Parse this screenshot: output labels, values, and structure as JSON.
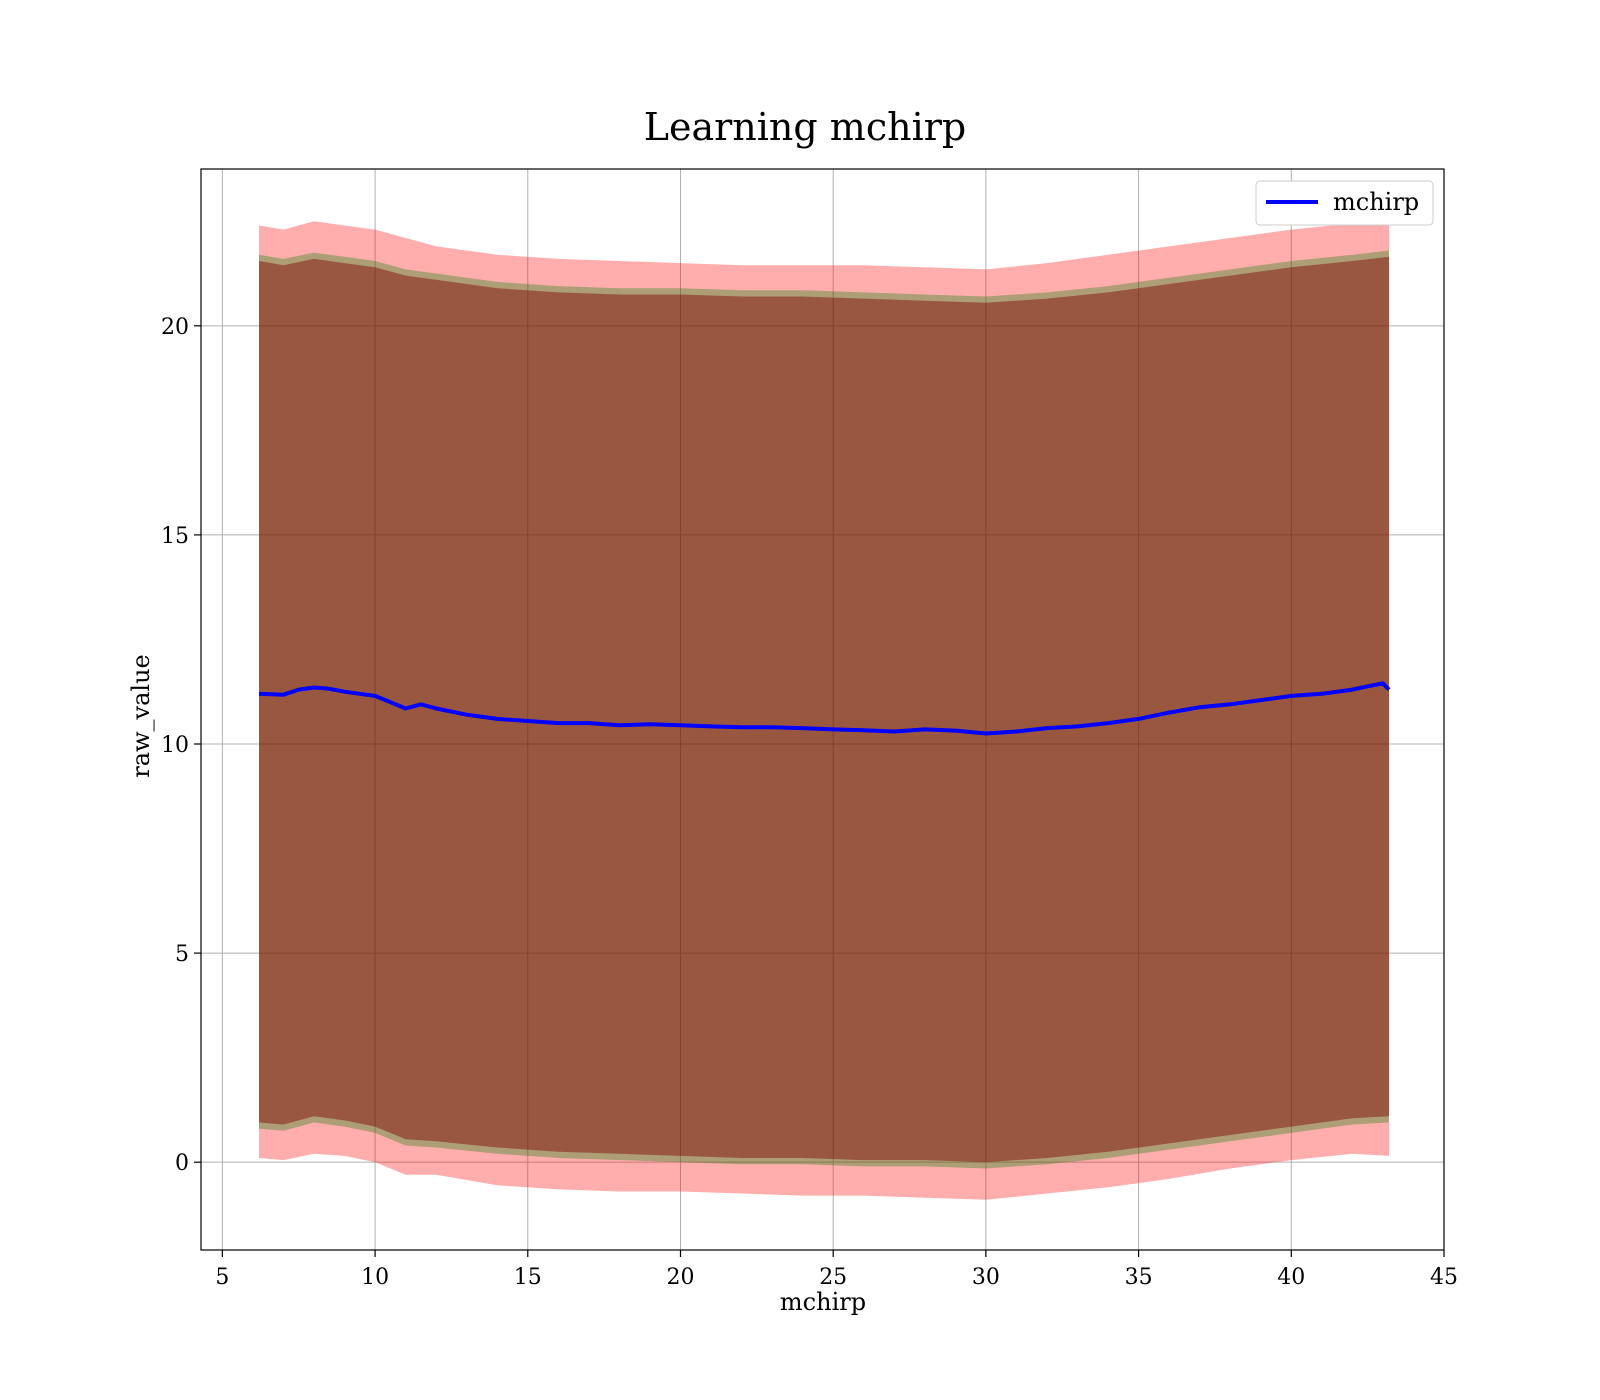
{
  "chart_data": {
    "type": "line",
    "title": "Learning mchirp",
    "xlabel": "mchirp",
    "ylabel": "raw_value",
    "xlim": [
      4.3,
      45
    ],
    "ylim": [
      -2.1,
      23.75
    ],
    "xticks": [
      5,
      10,
      15,
      20,
      25,
      30,
      35,
      40,
      45
    ],
    "yticks": [
      0,
      5,
      10,
      15,
      20
    ],
    "grid": true,
    "legend_position": "top-right",
    "colors": {
      "line": "#0000ff",
      "outer_band": "#ff0000",
      "middle_band": "#008000",
      "inner_band": "#800000",
      "grid": "#b0b0b0"
    },
    "series": [
      {
        "name": "mchirp",
        "x": [
          6.2,
          7.0,
          7.5,
          8.0,
          8.5,
          9.0,
          9.5,
          10.0,
          10.5,
          11.0,
          11.5,
          12.0,
          13.0,
          14.0,
          15.0,
          16.0,
          17.0,
          18.0,
          19.0,
          20.0,
          21.0,
          22.0,
          23.0,
          24.0,
          25.0,
          26.0,
          27.0,
          28.0,
          29.0,
          30.0,
          31.0,
          32.0,
          33.0,
          34.0,
          35.0,
          36.0,
          37.0,
          38.0,
          39.0,
          40.0,
          41.0,
          42.0,
          42.5,
          43.0,
          43.2
        ],
        "y": [
          11.2,
          11.18,
          11.3,
          11.35,
          11.32,
          11.25,
          11.2,
          11.15,
          11.0,
          10.85,
          10.95,
          10.85,
          10.7,
          10.6,
          10.55,
          10.5,
          10.5,
          10.45,
          10.47,
          10.45,
          10.42,
          10.4,
          10.4,
          10.38,
          10.35,
          10.33,
          10.3,
          10.35,
          10.32,
          10.25,
          10.3,
          10.38,
          10.42,
          10.5,
          10.6,
          10.75,
          10.88,
          10.95,
          11.05,
          11.15,
          11.2,
          11.3,
          11.38,
          11.45,
          11.3
        ]
      }
    ],
    "bands": [
      {
        "x": [
          6.2,
          7.0,
          8.0,
          9.0,
          10.0,
          11.0,
          12.0,
          14.0,
          16.0,
          18.0,
          20.0,
          22.0,
          24.0,
          26.0,
          28.0,
          30.0,
          32.0,
          34.0,
          36.0,
          38.0,
          40.0,
          42.0,
          43.2
        ],
        "lower": [
          0.1,
          0.05,
          0.2,
          0.15,
          0.0,
          -0.3,
          -0.3,
          -0.55,
          -0.65,
          -0.7,
          -0.7,
          -0.75,
          -0.8,
          -0.8,
          -0.85,
          -0.9,
          -0.75,
          -0.6,
          -0.4,
          -0.15,
          0.05,
          0.2,
          0.15
        ],
        "upper": [
          22.4,
          22.3,
          22.5,
          22.4,
          22.3,
          22.1,
          21.9,
          21.7,
          21.6,
          21.55,
          21.5,
          21.45,
          21.45,
          21.45,
          21.4,
          21.35,
          21.5,
          21.7,
          21.9,
          22.1,
          22.3,
          22.45,
          22.5
        ]
      },
      {
        "x": [
          6.2,
          7.0,
          8.0,
          9.0,
          10.0,
          11.0,
          12.0,
          14.0,
          16.0,
          18.0,
          20.0,
          22.0,
          24.0,
          26.0,
          28.0,
          30.0,
          32.0,
          34.0,
          36.0,
          38.0,
          40.0,
          42.0,
          43.2
        ],
        "lower": [
          0.8,
          0.75,
          0.95,
          0.85,
          0.7,
          0.4,
          0.35,
          0.2,
          0.1,
          0.05,
          0.0,
          -0.05,
          -0.05,
          -0.1,
          -0.1,
          -0.15,
          -0.05,
          0.1,
          0.3,
          0.5,
          0.7,
          0.9,
          0.95
        ],
        "upper": [
          21.7,
          21.6,
          21.75,
          21.65,
          21.55,
          21.35,
          21.25,
          21.05,
          20.95,
          20.9,
          20.9,
          20.85,
          20.85,
          20.8,
          20.75,
          20.7,
          20.8,
          20.95,
          21.15,
          21.35,
          21.55,
          21.7,
          21.8
        ]
      },
      {
        "x": [
          6.2,
          7.0,
          8.0,
          9.0,
          10.0,
          11.0,
          12.0,
          14.0,
          16.0,
          18.0,
          20.0,
          22.0,
          24.0,
          26.0,
          28.0,
          30.0,
          32.0,
          34.0,
          36.0,
          38.0,
          40.0,
          42.0,
          43.2
        ],
        "lower": [
          0.95,
          0.9,
          1.1,
          1.0,
          0.85,
          0.55,
          0.5,
          0.35,
          0.25,
          0.2,
          0.15,
          0.1,
          0.1,
          0.05,
          0.05,
          0.0,
          0.1,
          0.25,
          0.45,
          0.65,
          0.85,
          1.05,
          1.1
        ],
        "upper": [
          21.55,
          21.45,
          21.6,
          21.5,
          21.4,
          21.2,
          21.1,
          20.9,
          20.8,
          20.75,
          20.75,
          20.7,
          20.7,
          20.65,
          20.6,
          20.55,
          20.65,
          20.8,
          21.0,
          21.2,
          21.4,
          21.55,
          21.65
        ]
      }
    ]
  }
}
